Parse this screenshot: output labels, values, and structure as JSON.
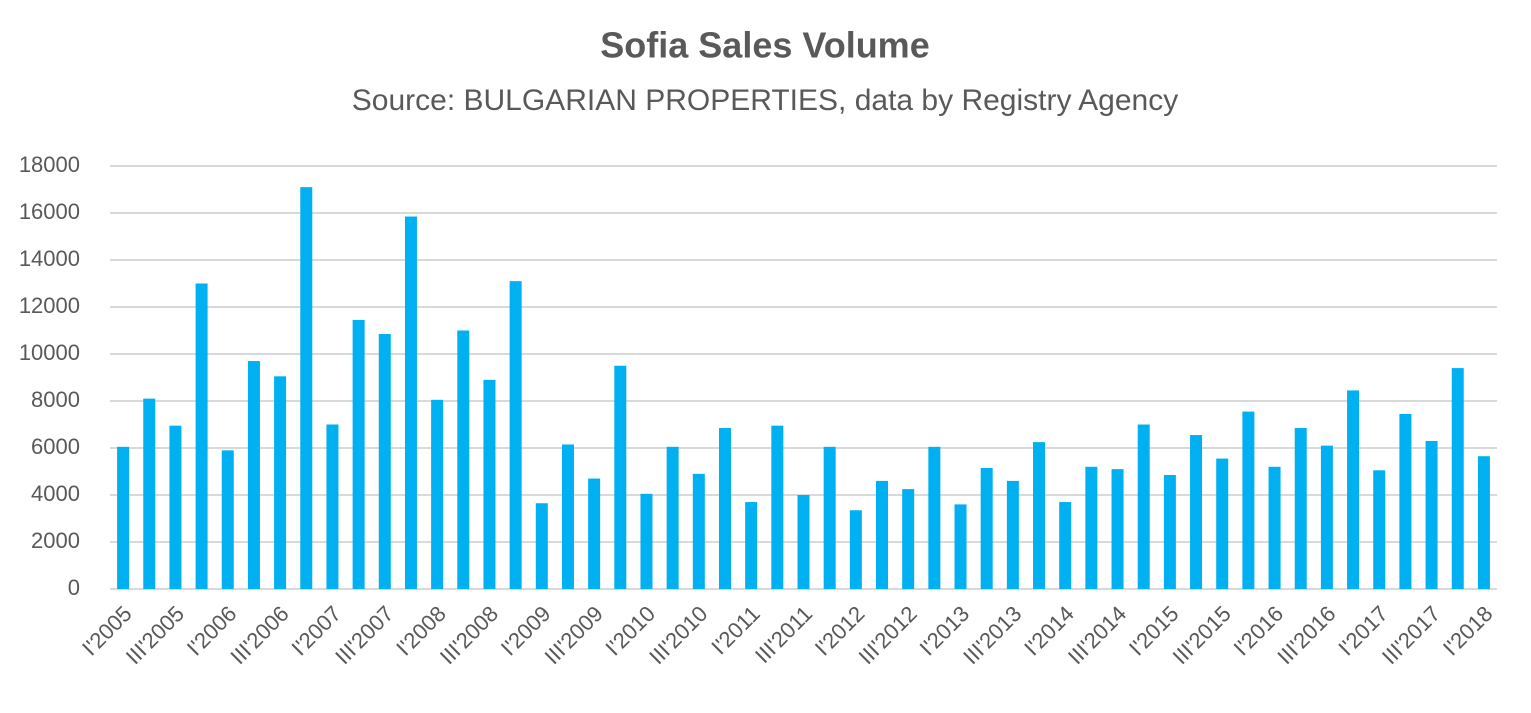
{
  "chart_data": {
    "type": "bar",
    "title": "Sofia Sales Volume",
    "subtitle": "Source: BULGARIAN PROPERTIES, data by Registry Agency",
    "categories": [
      "I'2005",
      null,
      "III'2005",
      null,
      "I'2006",
      null,
      "III'2006",
      null,
      "I'2007",
      null,
      "III'2007",
      null,
      "I'2008",
      null,
      "III'2008",
      null,
      "I'2009",
      null,
      "III'2009",
      null,
      "I'2010",
      null,
      "III'2010",
      null,
      "I'2011",
      null,
      "III'2011",
      null,
      "I'2012",
      null,
      "III'2012",
      null,
      "I'2013",
      null,
      "III'2013",
      null,
      "I'2014",
      null,
      "III'2014",
      null,
      "I'2015",
      null,
      "III'2015",
      null,
      "I'2016",
      null,
      "III'2016",
      null,
      "I'2017",
      null,
      "III'2017",
      null,
      "I'2018"
    ],
    "values": [
      6050,
      8100,
      6950,
      13000,
      5900,
      9700,
      9050,
      17100,
      7000,
      11450,
      10850,
      15850,
      8050,
      11000,
      8900,
      13100,
      3650,
      6150,
      4700,
      9500,
      4050,
      6050,
      4900,
      6850,
      3700,
      6950,
      4000,
      6050,
      3350,
      4600,
      4250,
      6050,
      3600,
      5150,
      4600,
      6250,
      3700,
      5200,
      5100,
      7000,
      4850,
      6550,
      5550,
      7550,
      5200,
      6850,
      6100,
      8450,
      5050,
      7450,
      6300,
      9400,
      5650
    ],
    "color": "#00b0f0",
    "ylim": [
      0,
      18000
    ],
    "yticks": [
      0,
      2000,
      4000,
      6000,
      8000,
      10000,
      12000,
      14000,
      16000,
      18000
    ],
    "grid": true
  }
}
